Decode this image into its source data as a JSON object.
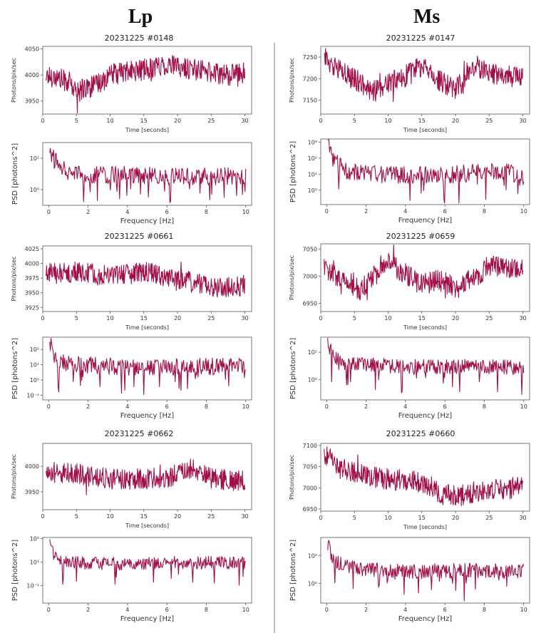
{
  "headers": {
    "left": "Lp",
    "right": "Ms"
  },
  "colors": {
    "series": "#a00f48",
    "divider": "#bdbdbd"
  },
  "charts": [
    {
      "type": "line",
      "title": "20231225 #0148",
      "xlabel": "Time [seconds]",
      "ylabel": "Photons/pix/sec",
      "xlim": [
        0,
        31
      ],
      "ylim": [
        3925,
        4055
      ],
      "xticks": [
        0,
        5,
        10,
        15,
        20,
        25,
        30
      ],
      "yticks": [
        3950,
        4000,
        4050
      ],
      "ytick_labels": [
        "3950",
        "4000",
        "4050"
      ],
      "series_profile": {
        "x": [
          0.5,
          2,
          4,
          5,
          6,
          8,
          10,
          12,
          15,
          18,
          20,
          23,
          25,
          28,
          30
        ],
        "y": [
          4000,
          3995,
          3985,
          3965,
          3975,
          3980,
          4000,
          4005,
          4010,
          4020,
          4015,
          4010,
          4005,
          4000,
          4005
        ]
      }
    },
    {
      "type": "line",
      "title": "",
      "xlabel": "Frequency [Hz]",
      "ylabel": "PSD [photons^2]",
      "log_y": true,
      "xlim": [
        -0.3,
        10.3
      ],
      "ylim": [
        -1.0,
        3.0
      ],
      "xticks": [
        0,
        2,
        4,
        6,
        8,
        10
      ],
      "yticks": [
        0,
        2
      ],
      "ytick_labels": [
        "10⁰",
        "10²"
      ],
      "series_profile": {
        "x": [
          0.05,
          0.3,
          1,
          2,
          4,
          6,
          8,
          10
        ],
        "y": [
          2.6,
          1.9,
          1.2,
          1.0,
          1.0,
          0.9,
          0.9,
          0.9
        ]
      }
    },
    {
      "type": "line",
      "title": "20231225 #0661",
      "xlabel": "Time [seconds]",
      "ylabel": "Photons/pix/sec",
      "xlim": [
        0,
        31
      ],
      "ylim": [
        3918,
        4030
      ],
      "xticks": [
        0,
        5,
        10,
        15,
        20,
        25,
        30
      ],
      "yticks": [
        3925,
        3950,
        3975,
        4000,
        4025
      ],
      "ytick_labels": [
        "3925",
        "3950",
        "3975",
        "4000",
        "4025"
      ],
      "series_profile": {
        "x": [
          0.5,
          5,
          10,
          15,
          20,
          25,
          30
        ],
        "y": [
          3983,
          3985,
          3978,
          3985,
          3975,
          3960,
          3962
        ]
      }
    },
    {
      "type": "line",
      "title": "",
      "xlabel": "Frequency [Hz]",
      "ylabel": "PSD [photons^2]",
      "log_y": true,
      "xlim": [
        -0.3,
        10.3
      ],
      "ylim": [
        -1.3,
        2.8
      ],
      "xticks": [
        0,
        2,
        4,
        6,
        8,
        10
      ],
      "yticks": [
        -1,
        0,
        1,
        2
      ],
      "ytick_labels": [
        "10⁻¹",
        "10⁰",
        "10¹",
        "10²"
      ],
      "series_profile": {
        "x": [
          0.05,
          0.3,
          1,
          4,
          7,
          10
        ],
        "y": [
          2.6,
          1.4,
          1.1,
          0.9,
          0.9,
          1.0
        ]
      }
    },
    {
      "type": "line",
      "title": "20231225 #0662",
      "xlabel": "Time [seconds]",
      "ylabel": "Photons/pix/sec",
      "xlim": [
        0,
        31
      ],
      "ylim": [
        3915,
        4045
      ],
      "xticks": [
        0,
        5,
        10,
        15,
        20,
        25,
        30
      ],
      "yticks": [
        3950,
        4000
      ],
      "ytick_labels": [
        "3950",
        "4000"
      ],
      "series_profile": {
        "x": [
          0.5,
          5,
          10,
          15,
          20,
          22,
          25,
          30
        ],
        "y": [
          3990,
          3985,
          3975,
          3975,
          3980,
          3995,
          3975,
          3972
        ]
      }
    },
    {
      "type": "line",
      "title": "",
      "xlabel": "Frequency [Hz]",
      "ylabel": "PSD [photons^2]",
      "log_y": true,
      "xlim": [
        -0.3,
        10.3
      ],
      "ylim": [
        -2.5,
        3.1
      ],
      "xticks": [
        0,
        2,
        4,
        6,
        8,
        10
      ],
      "yticks": [
        -1,
        1,
        3
      ],
      "ytick_labels": [
        "10⁻¹",
        "10¹",
        "10³"
      ],
      "series_profile": {
        "x": [
          0.05,
          0.3,
          1,
          4,
          6,
          10
        ],
        "y": [
          2.9,
          1.5,
          1.0,
          0.9,
          1.0,
          1.0
        ]
      }
    },
    {
      "type": "line",
      "title": "20231225 #0147",
      "xlabel": "Time [seconds]",
      "ylabel": "Photons/pix/sec",
      "xlim": [
        0,
        31
      ],
      "ylim": [
        7118,
        7275
      ],
      "xticks": [
        0,
        5,
        10,
        15,
        20,
        25,
        30
      ],
      "yticks": [
        7150,
        7200,
        7250
      ],
      "ytick_labels": [
        "7150",
        "7200",
        "7250"
      ],
      "series_profile": {
        "x": [
          0.5,
          3,
          5,
          8,
          10,
          13,
          15,
          17,
          20,
          23,
          25,
          28,
          30
        ],
        "y": [
          7250,
          7215,
          7200,
          7170,
          7190,
          7210,
          7230,
          7200,
          7175,
          7230,
          7210,
          7205,
          7205
        ]
      }
    },
    {
      "type": "line",
      "title": "",
      "xlabel": "Frequency [Hz]",
      "ylabel": "PSD [photons^2]",
      "log_y": true,
      "xlim": [
        -0.3,
        10.3
      ],
      "ylim": [
        -0.9,
        3.2
      ],
      "xticks": [
        0,
        2,
        4,
        6,
        8,
        10
      ],
      "yticks": [
        0,
        1,
        2,
        3
      ],
      "ytick_labels": [
        "10⁰",
        "10¹",
        "10²",
        "10³"
      ],
      "series_profile": {
        "x": [
          0.05,
          0.3,
          1,
          3,
          6,
          9,
          10
        ],
        "y": [
          3.0,
          2.0,
          1.2,
          1.0,
          1.0,
          1.3,
          0.8
        ]
      }
    },
    {
      "type": "line",
      "title": "20231225 #0659",
      "xlabel": "Time [seconds]",
      "ylabel": "Photons/pix/sec",
      "xlim": [
        0,
        31
      ],
      "ylim": [
        6935,
        7060
      ],
      "xticks": [
        0,
        5,
        10,
        15,
        20,
        25,
        30
      ],
      "yticks": [
        6950,
        7000,
        7050
      ],
      "ytick_labels": [
        "6950",
        "7000",
        "7050"
      ],
      "series_profile": {
        "x": [
          0.5,
          3,
          6,
          9,
          10,
          13,
          15,
          18,
          20,
          23,
          25,
          30
        ],
        "y": [
          7020,
          6995,
          6975,
          7020,
          7025,
          7000,
          6985,
          6995,
          6975,
          7000,
          7020,
          7010
        ]
      }
    },
    {
      "type": "line",
      "title": "",
      "xlabel": "Frequency [Hz]",
      "ylabel": "PSD [photons^2]",
      "log_y": true,
      "xlim": [
        -0.3,
        10.3
      ],
      "ylim": [
        -1.5,
        3.1
      ],
      "xticks": [
        0,
        2,
        4,
        6,
        8,
        10
      ],
      "yticks": [
        0,
        2
      ],
      "ytick_labels": [
        "10⁰",
        "10²"
      ],
      "series_profile": {
        "x": [
          0.05,
          0.3,
          1,
          4,
          7,
          10
        ],
        "y": [
          2.7,
          1.8,
          1.2,
          1.0,
          1.0,
          0.9
        ]
      }
    },
    {
      "type": "line",
      "title": "20231225 #0660",
      "xlabel": "Time [seconds]",
      "ylabel": "Photons/pix/sec",
      "xlim": [
        0,
        31
      ],
      "ylim": [
        6945,
        7105
      ],
      "xticks": [
        0,
        5,
        10,
        15,
        20,
        25,
        30
      ],
      "yticks": [
        6950,
        7000,
        7050,
        7100
      ],
      "ytick_labels": [
        "6950",
        "7000",
        "7050",
        "7100"
      ],
      "series_profile": {
        "x": [
          0.5,
          1,
          3,
          5,
          10,
          15,
          18,
          20,
          23,
          25,
          28,
          30
        ],
        "y": [
          7070,
          7080,
          7045,
          7035,
          7020,
          7015,
          6985,
          6980,
          6990,
          6995,
          6995,
          7005
        ]
      }
    },
    {
      "type": "line",
      "title": "",
      "xlabel": "Frequency [Hz]",
      "ylabel": "PSD [photons^2]",
      "log_y": true,
      "xlim": [
        -0.3,
        10.3
      ],
      "ylim": [
        -1.4,
        3.3
      ],
      "xticks": [
        0,
        2,
        4,
        6,
        8,
        10
      ],
      "yticks": [
        0,
        2
      ],
      "ytick_labels": [
        "10⁰",
        "10²"
      ],
      "series_profile": {
        "x": [
          0.05,
          0.3,
          1,
          4,
          7,
          10
        ],
        "y": [
          3.0,
          1.8,
          1.2,
          0.9,
          1.0,
          0.9
        ]
      }
    }
  ]
}
